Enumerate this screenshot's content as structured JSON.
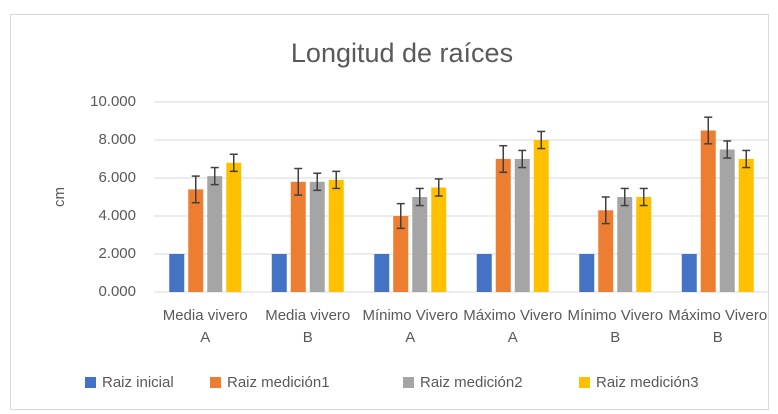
{
  "chart_data": {
    "type": "bar",
    "title": "Longitud de raíces",
    "y_label": "cm",
    "categories": [
      "Media vivero A",
      "Media vivero B",
      "Mínimo Vivero A",
      "Máximo Vivero A",
      "Mínimo Vivero B",
      "Máximo Vivero B"
    ],
    "series": [
      {
        "name": "Raiz inicial",
        "color": "#4472c4",
        "values": [
          2,
          2,
          2,
          2,
          2,
          2
        ]
      },
      {
        "name": "Raiz medición1",
        "color": "#ed7d31",
        "values": [
          5.4,
          5.8,
          4.0,
          7.0,
          4.3,
          8.5
        ],
        "errors": [
          0.7,
          0.7,
          0.65,
          0.7,
          0.7,
          0.7
        ]
      },
      {
        "name": "Raiz medición2",
        "color": "#a5a5a5",
        "values": [
          6.1,
          5.8,
          5.0,
          7.0,
          5.0,
          7.5
        ],
        "errors": [
          0.45,
          0.45,
          0.45,
          0.45,
          0.45,
          0.45
        ]
      },
      {
        "name": "Raiz medición3",
        "color": "#ffc000",
        "values": [
          6.8,
          5.9,
          5.5,
          8.0,
          5.0,
          7.0
        ],
        "errors": [
          0.45,
          0.45,
          0.45,
          0.45,
          0.45,
          0.45
        ]
      }
    ],
    "ylim": [
      0,
      10
    ],
    "yticks": [
      {
        "value": 0,
        "label": "0.000"
      },
      {
        "value": 2,
        "label": "2.000"
      },
      {
        "value": 4,
        "label": "4.000"
      },
      {
        "value": 6,
        "label": "6.000"
      },
      {
        "value": 8,
        "label": "8.000"
      },
      {
        "value": 10,
        "label": "10.000"
      }
    ],
    "legend": "bottom"
  }
}
